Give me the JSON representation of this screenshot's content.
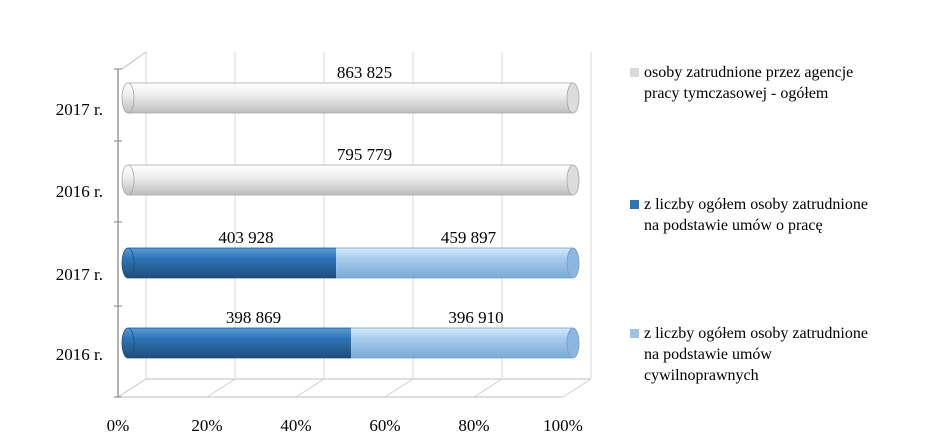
{
  "chart_data": {
    "type": "bar",
    "orientation": "horizontal",
    "stacking": "percent",
    "style": "3d-cylinder",
    "categories": [
      "2016 r.",
      "2017 r.",
      "2016 r.",
      "2017 r."
    ],
    "series": [
      {
        "name": "z liczby ogółem osoby zatrudnione na podstawie umów o pracę",
        "color": "#2e75b6",
        "values": [
          398869,
          403928,
          null,
          null
        ],
        "labels": [
          "398 869",
          "403 928",
          "",
          ""
        ]
      },
      {
        "name": "z liczby ogółem osoby zatrudnione na podstawie umów cywilnoprawnych",
        "color": "#9dc3e6",
        "values": [
          396910,
          459897,
          null,
          null
        ],
        "labels": [
          "396 910",
          "459 897",
          "",
          ""
        ]
      },
      {
        "name": "osoby zatrudnione przez agencje pracy tymczasowej - ogółem",
        "color": "#e0e0e0",
        "values": [
          null,
          null,
          795779,
          863825
        ],
        "labels": [
          "",
          "",
          "795 779",
          "863 825"
        ]
      }
    ],
    "xlim": [
      0,
      100
    ],
    "xticks": [
      "0%",
      "20%",
      "40%",
      "60%",
      "80%",
      "100%"
    ],
    "grid": true,
    "legend_position": "right"
  },
  "legend": [
    {
      "lines": [
        "osoby zatrudnione przez agencje",
        "pracy tymczasowej - ogółem"
      ],
      "color": "#d9d9d9"
    },
    {
      "lines": [
        "z liczby ogółem osoby zatrudnione",
        "na podstawie umów o pracę"
      ],
      "color": "#2e75b6"
    },
    {
      "lines": [
        "z liczby ogółem osoby zatrudnione",
        "na podstawie umów",
        "cywilnoprawnych"
      ],
      "color": "#9dc3e6"
    }
  ]
}
